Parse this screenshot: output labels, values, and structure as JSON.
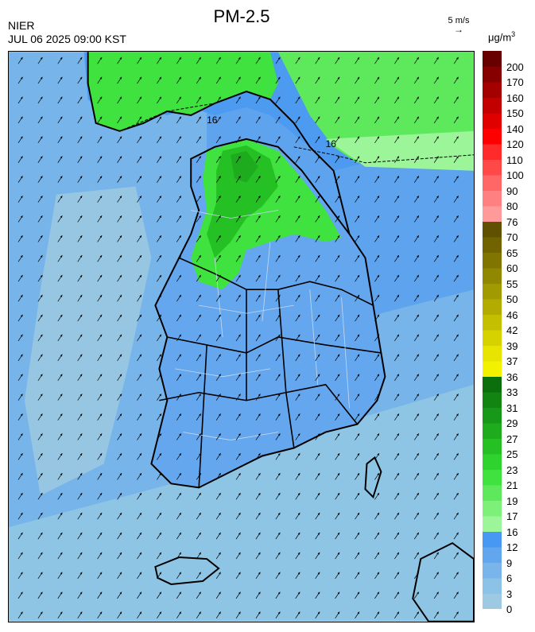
{
  "header": {
    "title": "PM-2.5",
    "org": "NIER",
    "datetime": "JUL 06 2025 09:00 KST",
    "wind_ref_label": "5 m/s",
    "unit_base": "μg/m",
    "unit_exp": "3"
  },
  "contour_labels": [
    "16",
    "16"
  ],
  "legend": {
    "levels": [
      {
        "label": "0",
        "color": "#9ec9e2"
      },
      {
        "label": "3",
        "color": "#8cc2e6"
      },
      {
        "label": "6",
        "color": "#79b5ea"
      },
      {
        "label": "9",
        "color": "#62a6ee"
      },
      {
        "label": "12",
        "color": "#4698f2"
      },
      {
        "label": "16",
        "color": "#9df59a"
      },
      {
        "label": "17",
        "color": "#7df07a"
      },
      {
        "label": "19",
        "color": "#5ee95c"
      },
      {
        "label": "21",
        "color": "#3fe23e"
      },
      {
        "label": "23",
        "color": "#2ed42d"
      },
      {
        "label": "25",
        "color": "#25c024"
      },
      {
        "label": "27",
        "color": "#1eac1e"
      },
      {
        "label": "29",
        "color": "#189818"
      },
      {
        "label": "31",
        "color": "#128412"
      },
      {
        "label": "33",
        "color": "#0b700b"
      },
      {
        "label": "36",
        "color": "#f2f200"
      },
      {
        "label": "37",
        "color": "#e8e400"
      },
      {
        "label": "39",
        "color": "#d6d200"
      },
      {
        "label": "42",
        "color": "#c4bf00"
      },
      {
        "label": "46",
        "color": "#b2ac00"
      },
      {
        "label": "50",
        "color": "#a19a00"
      },
      {
        "label": "55",
        "color": "#908800"
      },
      {
        "label": "60",
        "color": "#807500"
      },
      {
        "label": "65",
        "color": "#706300"
      },
      {
        "label": "70",
        "color": "#605100"
      },
      {
        "label": "76",
        "color": "#ff9a9a"
      },
      {
        "label": "80",
        "color": "#ff8080"
      },
      {
        "label": "90",
        "color": "#ff6666"
      },
      {
        "label": "100",
        "color": "#ff4848"
      },
      {
        "label": "110",
        "color": "#ff2a2a"
      },
      {
        "label": "120",
        "color": "#ff0000"
      },
      {
        "label": "140",
        "color": "#e00000"
      },
      {
        "label": "150",
        "color": "#c20000"
      },
      {
        "label": "160",
        "color": "#a40000"
      },
      {
        "label": "170",
        "color": "#860000"
      },
      {
        "label": "200",
        "color": "#680000"
      }
    ]
  },
  "map": {
    "sea_color": "#8ec5e4",
    "land_color": "#64a7ee",
    "high_color": "#3fe23e",
    "peak_color": "#1eac1e",
    "border_color": "#000000",
    "wind_direction": "southwest-to-northeast"
  }
}
